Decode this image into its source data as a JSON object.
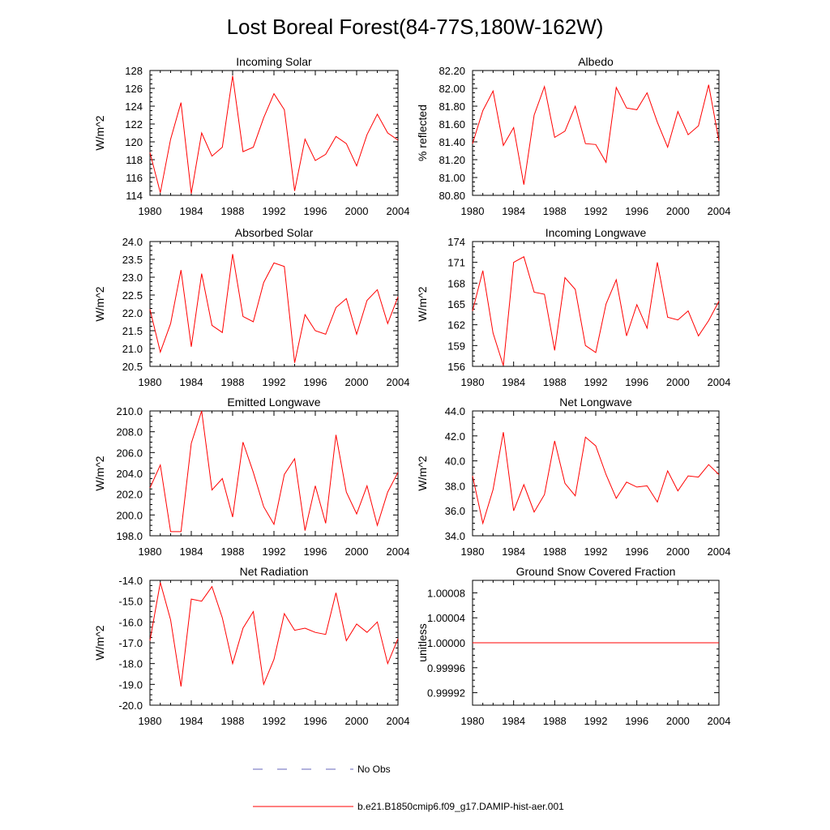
{
  "figure": {
    "title": "Lost Boreal Forest(84-77S,180W-162W)"
  },
  "legend": {
    "entries": [
      {
        "label": "No Obs",
        "color": "#6666bb",
        "style": "dashed"
      },
      {
        "label": "b.e21.B1850cmip6.f09_g17.DAMIP-hist-aer.001",
        "color": "#ff0000",
        "style": "solid"
      }
    ]
  },
  "chart_data": [
    {
      "type": "line",
      "title": "Incoming Solar",
      "ylabel": "W/m^2",
      "xlim": [
        1980,
        2004
      ],
      "ylim": [
        114,
        128
      ],
      "xticks": [
        "1980",
        "1984",
        "1988",
        "1992",
        "1996",
        "2000",
        "2004"
      ],
      "yticks": [
        "114",
        "116",
        "118",
        "120",
        "122",
        "124",
        "126",
        "128"
      ],
      "series": [
        {
          "color": "#ff0000",
          "x": [
            1980,
            1981,
            1982,
            1983,
            1984,
            1985,
            1986,
            1987,
            1988,
            1989,
            1990,
            1991,
            1992,
            1993,
            1994,
            1995,
            1996,
            1997,
            1998,
            1999,
            2000,
            2001,
            2002,
            2003,
            2004
          ],
          "y": [
            118.8,
            114.3,
            120.3,
            124.4,
            114.2,
            121.0,
            118.4,
            119.4,
            127.4,
            118.9,
            119.4,
            122.7,
            125.4,
            123.6,
            114.5,
            120.3,
            117.9,
            118.6,
            120.6,
            119.8,
            117.3,
            120.8,
            123.1,
            121.0,
            120.2
          ]
        }
      ]
    },
    {
      "type": "line",
      "title": "Albedo",
      "ylabel": "% reflected",
      "xlim": [
        1980,
        2004
      ],
      "ylim": [
        80.8,
        82.2
      ],
      "xticks": [
        "1980",
        "1984",
        "1988",
        "1992",
        "1996",
        "2000",
        "2004"
      ],
      "yticks": [
        "80.80",
        "81.00",
        "81.20",
        "81.40",
        "81.60",
        "81.80",
        "82.00",
        "82.20"
      ],
      "series": [
        {
          "color": "#ff0000",
          "x": [
            1980,
            1981,
            1982,
            1983,
            1984,
            1985,
            1986,
            1987,
            1988,
            1989,
            1990,
            1991,
            1992,
            1993,
            1994,
            1995,
            1996,
            1997,
            1998,
            1999,
            2000,
            2001,
            2002,
            2003,
            2004
          ],
          "y": [
            81.38,
            81.75,
            81.97,
            81.36,
            81.56,
            80.92,
            81.7,
            82.02,
            81.45,
            81.52,
            81.8,
            81.38,
            81.37,
            81.17,
            82.01,
            81.78,
            81.76,
            81.95,
            81.62,
            81.34,
            81.74,
            81.48,
            81.58,
            82.04,
            81.41
          ]
        }
      ]
    },
    {
      "type": "line",
      "title": "Absorbed Solar",
      "ylabel": "W/m^2",
      "xlim": [
        1980,
        2004
      ],
      "ylim": [
        20.5,
        24.0
      ],
      "xticks": [
        "1980",
        "1984",
        "1988",
        "1992",
        "1996",
        "2000",
        "2004"
      ],
      "yticks": [
        "20.5",
        "21.0",
        "21.5",
        "22.0",
        "22.5",
        "23.0",
        "23.5",
        "24.0"
      ],
      "series": [
        {
          "color": "#ff0000",
          "x": [
            1980,
            1981,
            1982,
            1983,
            1984,
            1985,
            1986,
            1987,
            1988,
            1989,
            1990,
            1991,
            1992,
            1993,
            1994,
            1995,
            1996,
            1997,
            1998,
            1999,
            2000,
            2001,
            2002,
            2003,
            2004
          ],
          "y": [
            22.1,
            20.9,
            21.7,
            23.2,
            21.05,
            23.1,
            21.65,
            21.45,
            23.65,
            21.9,
            21.75,
            22.85,
            23.4,
            23.3,
            20.6,
            21.95,
            21.5,
            21.4,
            22.15,
            22.4,
            21.4,
            22.35,
            22.65,
            21.7,
            22.45
          ]
        }
      ]
    },
    {
      "type": "line",
      "title": "Incoming Longwave",
      "ylabel": "W/m^2",
      "xlim": [
        1980,
        2004
      ],
      "ylim": [
        156,
        174
      ],
      "xticks": [
        "1980",
        "1984",
        "1988",
        "1992",
        "1996",
        "2000",
        "2004"
      ],
      "yticks": [
        "156",
        "159",
        "162",
        "165",
        "168",
        "171",
        "174"
      ],
      "series": [
        {
          "color": "#ff0000",
          "x": [
            1980,
            1981,
            1982,
            1983,
            1984,
            1985,
            1986,
            1987,
            1988,
            1989,
            1990,
            1991,
            1992,
            1993,
            1994,
            1995,
            1996,
            1997,
            1998,
            1999,
            2000,
            2001,
            2002,
            2003,
            2004
          ],
          "y": [
            164.0,
            169.8,
            160.8,
            156.1,
            171.0,
            171.8,
            166.7,
            166.4,
            158.3,
            168.8,
            167.1,
            159.0,
            158.0,
            165.0,
            168.5,
            160.4,
            164.9,
            161.5,
            171.0,
            163.1,
            162.7,
            164.0,
            160.4,
            162.6,
            165.4
          ]
        }
      ]
    },
    {
      "type": "line",
      "title": "Emitted Longwave",
      "ylabel": "W/m^2",
      "xlim": [
        1980,
        2004
      ],
      "ylim": [
        198,
        210
      ],
      "xticks": [
        "1980",
        "1984",
        "1988",
        "1992",
        "1996",
        "2000",
        "2004"
      ],
      "yticks": [
        "198.0",
        "200.0",
        "202.0",
        "204.0",
        "206.0",
        "208.0",
        "210.0"
      ],
      "series": [
        {
          "color": "#ff0000",
          "x": [
            1980,
            1981,
            1982,
            1983,
            1984,
            1985,
            1986,
            1987,
            1988,
            1989,
            1990,
            1991,
            1992,
            1993,
            1994,
            1995,
            1996,
            1997,
            1998,
            1999,
            2000,
            2001,
            2002,
            2003,
            2004
          ],
          "y": [
            202.6,
            204.8,
            198.4,
            198.4,
            206.9,
            210.0,
            202.4,
            203.5,
            199.8,
            207.0,
            204.1,
            200.8,
            199.1,
            203.9,
            205.4,
            198.5,
            202.8,
            199.2,
            207.7,
            202.2,
            200.1,
            202.8,
            199.0,
            202.2,
            204.1
          ]
        }
      ]
    },
    {
      "type": "line",
      "title": "Net Longwave",
      "ylabel": "W/m^2",
      "xlim": [
        1980,
        2004
      ],
      "ylim": [
        34,
        44
      ],
      "xticks": [
        "1980",
        "1984",
        "1988",
        "1992",
        "1996",
        "2000",
        "2004"
      ],
      "yticks": [
        "34.0",
        "36.0",
        "38.0",
        "40.0",
        "42.0",
        "44.0"
      ],
      "series": [
        {
          "color": "#ff0000",
          "x": [
            1980,
            1981,
            1982,
            1983,
            1984,
            1985,
            1986,
            1987,
            1988,
            1989,
            1990,
            1991,
            1992,
            1993,
            1994,
            1995,
            1996,
            1997,
            1998,
            1999,
            2000,
            2001,
            2002,
            2003,
            2004
          ],
          "y": [
            38.8,
            35.0,
            37.7,
            42.3,
            36.0,
            38.1,
            35.9,
            37.3,
            41.6,
            38.2,
            37.2,
            41.9,
            41.2,
            38.9,
            37.0,
            38.3,
            37.9,
            38.0,
            36.7,
            39.2,
            37.6,
            38.8,
            38.7,
            39.7,
            38.9
          ]
        }
      ]
    },
    {
      "type": "line",
      "title": "Net Radiation",
      "ylabel": "W/m^2",
      "xlim": [
        1980,
        2004
      ],
      "ylim": [
        -20,
        -14
      ],
      "xticks": [
        "1980",
        "1984",
        "1988",
        "1992",
        "1996",
        "2000",
        "2004"
      ],
      "yticks": [
        "-20.0",
        "-19.0",
        "-18.0",
        "-17.0",
        "-16.0",
        "-15.0",
        "-14.0"
      ],
      "series": [
        {
          "color": "#ff0000",
          "x": [
            1980,
            1981,
            1982,
            1983,
            1984,
            1985,
            1986,
            1987,
            1988,
            1989,
            1990,
            1991,
            1992,
            1993,
            1994,
            1995,
            1996,
            1997,
            1998,
            1999,
            2000,
            2001,
            2002,
            2003,
            2004
          ],
          "y": [
            -16.9,
            -14.1,
            -15.9,
            -19.1,
            -14.9,
            -15.0,
            -14.3,
            -15.8,
            -18.0,
            -16.3,
            -15.5,
            -19.0,
            -17.8,
            -15.6,
            -16.4,
            -16.3,
            -16.5,
            -16.6,
            -14.6,
            -16.9,
            -16.1,
            -16.5,
            -16.0,
            -18.0,
            -16.8
          ]
        }
      ]
    },
    {
      "type": "line",
      "title": "Ground Snow Covered Fraction",
      "ylabel": "unitless",
      "xlim": [
        1980,
        2004
      ],
      "ylim": [
        0.9999,
        1.0001
      ],
      "xticks": [
        "1980",
        "1984",
        "1988",
        "1992",
        "1996",
        "2000",
        "2004"
      ],
      "yticks": [
        "0.99992",
        "0.99996",
        "1.00000",
        "1.00004",
        "1.00008"
      ],
      "ytick_values": [
        0.99992,
        0.99996,
        1.0,
        1.00004,
        1.00008
      ],
      "series": [
        {
          "color": "#ff0000",
          "x": [
            1980,
            2004
          ],
          "y": [
            1.0,
            1.0
          ]
        }
      ]
    }
  ]
}
